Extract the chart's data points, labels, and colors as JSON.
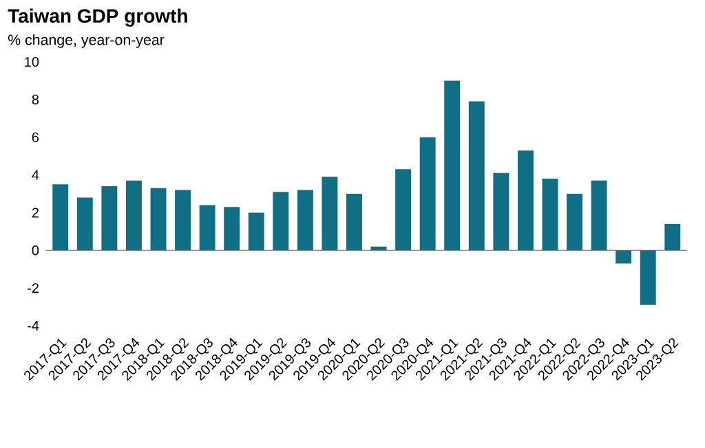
{
  "chart_data": {
    "type": "bar",
    "title": "Taiwan GDP growth",
    "subtitle": "% change, year-on-year",
    "categories": [
      "2017-Q1",
      "2017-Q2",
      "2017-Q3",
      "2017-Q4",
      "2018-Q1",
      "2018-Q2",
      "2018-Q3",
      "2018-Q4",
      "2019-Q1",
      "2019-Q2",
      "2019-Q3",
      "2019-Q4",
      "2020-Q1",
      "2020-Q2",
      "2020-Q3",
      "2020-Q4",
      "2021-Q1",
      "2021-Q2",
      "2021-Q3",
      "2021-Q4",
      "2022-Q1",
      "2022-Q2",
      "2022-Q3",
      "2022-Q4",
      "2023-Q1",
      "2023-Q2"
    ],
    "values": [
      3.5,
      2.8,
      3.4,
      3.7,
      3.3,
      3.2,
      2.4,
      2.3,
      2.0,
      3.1,
      3.2,
      3.9,
      3.0,
      0.2,
      4.3,
      6.0,
      9.0,
      7.9,
      4.1,
      5.3,
      3.8,
      3.0,
      3.7,
      -0.7,
      -2.9,
      1.4
    ],
    "color": "#0f7085",
    "ylim": [
      -4,
      10
    ],
    "yticks": [
      -4,
      -2,
      0,
      2,
      4,
      6,
      8,
      10
    ]
  }
}
